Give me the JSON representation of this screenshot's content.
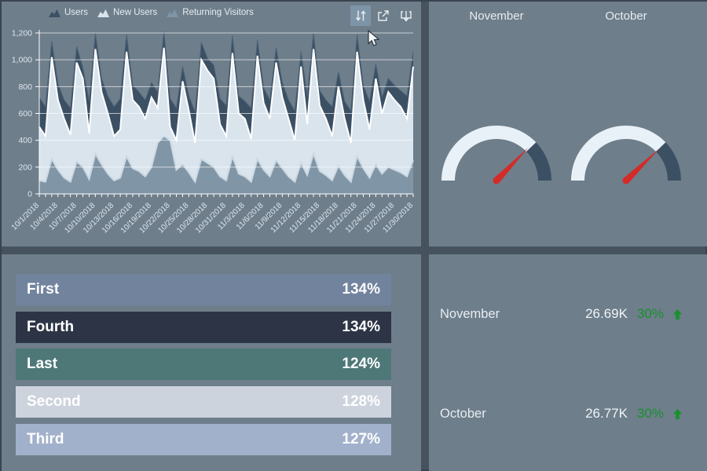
{
  "colors": {
    "background": "#6e7e8b",
    "divider": "#46535f",
    "border": "#39444e",
    "text": "#e7edf2",
    "axis_text": "#dde6ed",
    "toolbar_active": "#7e94a7",
    "positive_green": "#17912c",
    "gauge_needle": "#d42a28"
  },
  "chart_data": [
    {
      "id": "visitors-area",
      "type": "area",
      "legend_position": "top",
      "ylim": [
        0,
        1200
      ],
      "y_tick_labels": [
        "0",
        "200",
        "400",
        "600",
        "800",
        "1,000",
        "1,200"
      ],
      "x_points": 61,
      "label_every": 3,
      "x_labels": [
        "10/1/2018",
        "10/4/2018",
        "10/7/2018",
        "10/10/2018",
        "10/13/2018",
        "10/16/2018",
        "10/19/2018",
        "10/22/2018",
        "10/25/2018",
        "10/28/2018",
        "10/31/2018",
        "11/3/2018",
        "11/6/2018",
        "11/9/2018",
        "11/12/2018",
        "11/15/2018",
        "11/18/2018",
        "11/21/2018",
        "11/24/2018",
        "11/27/2018",
        "11/30/2018"
      ],
      "series": [
        {
          "name": "Users",
          "fill": "#3c5064",
          "line": "#4c6378",
          "values": [
            720,
            650,
            1140,
            820,
            700,
            640,
            1100,
            940,
            690,
            1200,
            860,
            730,
            650,
            710,
            1190,
            810,
            760,
            700,
            830,
            760,
            1210,
            710,
            640,
            950,
            730,
            610,
            1130,
            1010,
            960,
            710,
            660,
            1180,
            730,
            690,
            640,
            1150,
            790,
            700,
            1090,
            830,
            700,
            620,
            1060,
            730,
            1200,
            770,
            700,
            650,
            910,
            690,
            620,
            1190,
            810,
            690,
            970,
            720,
            860,
            810,
            770,
            730,
            1060
          ]
        },
        {
          "name": "New Users",
          "fill": "#d9e4ed",
          "line": "#ffffff",
          "values": [
            500,
            430,
            1020,
            700,
            560,
            440,
            980,
            860,
            450,
            1080,
            760,
            600,
            430,
            480,
            1060,
            700,
            650,
            560,
            720,
            640,
            1090,
            500,
            400,
            840,
            620,
            380,
            1000,
            920,
            860,
            520,
            430,
            1050,
            600,
            560,
            410,
            1030,
            680,
            560,
            980,
            720,
            560,
            400,
            950,
            520,
            1080,
            660,
            560,
            430,
            800,
            560,
            380,
            1060,
            700,
            480,
            860,
            600,
            760,
            700,
            650,
            560,
            950
          ]
        },
        {
          "name": "Returning Visitors",
          "fill": "#8095a6",
          "line": "#cbd8e2",
          "values": [
            100,
            90,
            260,
            180,
            120,
            90,
            240,
            200,
            110,
            300,
            220,
            150,
            100,
            120,
            280,
            190,
            170,
            130,
            200,
            380,
            430,
            400,
            180,
            220,
            160,
            90,
            260,
            230,
            200,
            130,
            100,
            280,
            150,
            130,
            90,
            260,
            180,
            130,
            250,
            190,
            130,
            90,
            230,
            140,
            300,
            170,
            140,
            100,
            210,
            140,
            90,
            280,
            190,
            120,
            220,
            150,
            200,
            180,
            160,
            130,
            250
          ]
        }
      ]
    },
    {
      "id": "gauge-november",
      "type": "gauge",
      "title": "November",
      "arc": [
        {
          "from": 180,
          "to": 44,
          "color": "#e9f1f8"
        },
        {
          "from": 44,
          "to": 0,
          "color": "#3c5064"
        }
      ],
      "needle_angle": 46
    },
    {
      "id": "gauge-october",
      "type": "gauge",
      "title": "October",
      "arc": [
        {
          "from": 180,
          "to": 44,
          "color": "#e9f1f8"
        },
        {
          "from": 44,
          "to": 0,
          "color": "#3c5064"
        }
      ],
      "needle_angle": 44
    },
    {
      "id": "ranking-bars",
      "type": "bar",
      "items": [
        {
          "label": "First",
          "value": "134%",
          "color": "#72839e"
        },
        {
          "label": "Fourth",
          "value": "134%",
          "color": "#2c3445"
        },
        {
          "label": "Last",
          "value": "124%",
          "color": "#4e7878"
        },
        {
          "label": "Second",
          "value": "128%",
          "color": "#cdd3dd"
        },
        {
          "label": "Third",
          "value": "127%",
          "color": "#a2b1cb"
        }
      ]
    },
    {
      "id": "kpi-list",
      "type": "table",
      "rows": [
        {
          "label": "November",
          "value": "26.69K",
          "delta": "30%",
          "trend": "up"
        },
        {
          "label": "October",
          "value": "26.77K",
          "delta": "30%",
          "trend": "up"
        }
      ]
    }
  ],
  "toolbar": {
    "swap_axes": "swap-axes",
    "maximize": "maximize",
    "export": "export"
  }
}
